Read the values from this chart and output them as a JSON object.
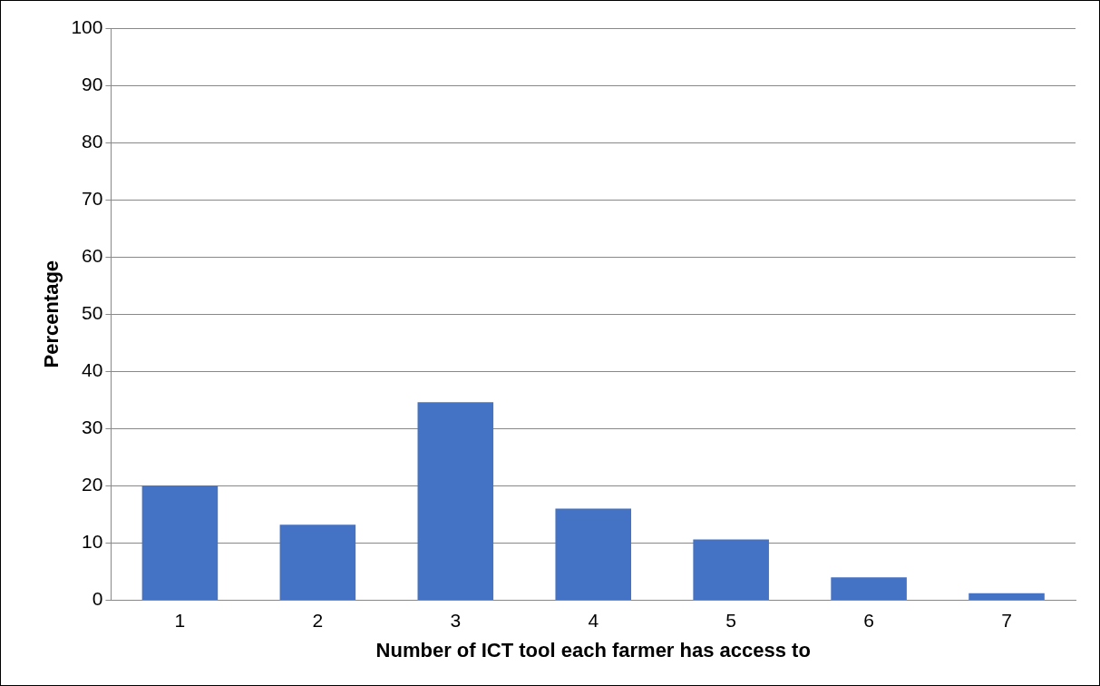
{
  "chart_data": {
    "type": "bar",
    "xlabel": "Number of ICT tool each farmer has access to",
    "ylabel": "Percentage",
    "categories": [
      "1",
      "2",
      "3",
      "4",
      "5",
      "6",
      "7"
    ],
    "values": [
      20,
      13.2,
      34.6,
      16,
      10.6,
      4,
      1.2
    ],
    "color": "#4472c4",
    "ylim": [
      0,
      100
    ],
    "yticks": [
      0,
      10,
      20,
      30,
      40,
      50,
      60,
      70,
      80,
      90,
      100
    ],
    "grid": "y",
    "legend": false
  }
}
